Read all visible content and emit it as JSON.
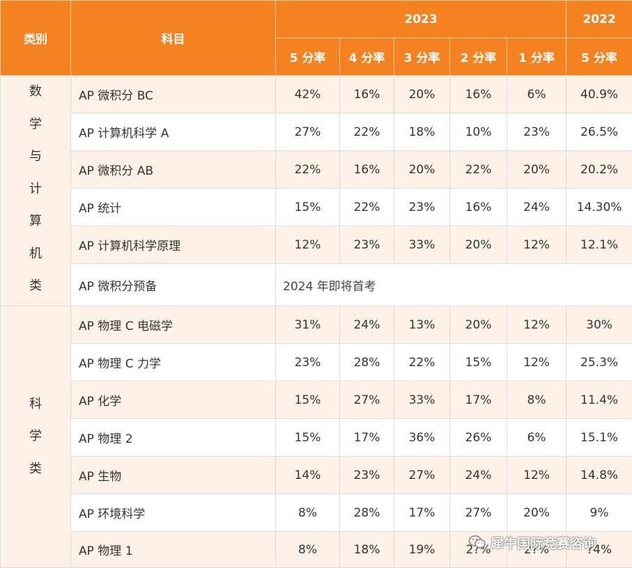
{
  "header": {
    "category": "类别",
    "subject": "科目",
    "year_2023": "2023",
    "year_2022": "2022",
    "rates_2023": [
      "5 分率",
      "4 分率",
      "3 分率",
      "2 分率",
      "1 分率"
    ],
    "rate_2022": "5 分率"
  },
  "groups": [
    {
      "category_chars": [
        "数",
        "学",
        "与",
        "计",
        "算",
        "机",
        "类"
      ],
      "rows": [
        {
          "subject": "AP 微积分 BC",
          "values": [
            "42%",
            "16%",
            "20%",
            "16%",
            "6%",
            "40.9%"
          ]
        },
        {
          "subject": "AP 计算机科学 A",
          "values": [
            "27%",
            "22%",
            "18%",
            "10%",
            "23%",
            "26.5%"
          ]
        },
        {
          "subject": "AP 微积分 AB",
          "values": [
            "22%",
            "16%",
            "20%",
            "22%",
            "20%",
            "20.2%"
          ]
        },
        {
          "subject": "AP 统计",
          "values": [
            "15%",
            "22%",
            "23%",
            "16%",
            "24%",
            "14.30%"
          ]
        },
        {
          "subject": "AP 计算机科学原理",
          "values": [
            "12%",
            "23%",
            "33%",
            "20%",
            "12%",
            "12.1%"
          ]
        }
      ],
      "note_row": {
        "subject": "AP 微积分预备",
        "note": "2024 年即将首考"
      }
    },
    {
      "category_chars": [
        "科",
        "学",
        "类"
      ],
      "rows": [
        {
          "subject": "AP 物理 C 电磁学",
          "values": [
            "31%",
            "24%",
            "13%",
            "20%",
            "12%",
            "30%"
          ]
        },
        {
          "subject": "AP 物理 C 力学",
          "values": [
            "23%",
            "28%",
            "22%",
            "15%",
            "12%",
            "25.3%"
          ]
        },
        {
          "subject": "AP 化学",
          "values": [
            "15%",
            "27%",
            "33%",
            "17%",
            "8%",
            "11.4%"
          ]
        },
        {
          "subject": "AP 物理 2",
          "values": [
            "15%",
            "17%",
            "36%",
            "26%",
            "6%",
            "15.1%"
          ]
        },
        {
          "subject": " AP 生物",
          "values": [
            "14%",
            "23%",
            "27%",
            "24%",
            "12%",
            "14.8%"
          ]
        },
        {
          "subject": "AP 环境科学",
          "values": [
            "8%",
            "28%",
            "17%",
            "27%",
            "20%",
            "9%"
          ]
        },
        {
          "subject": "AP 物理 1",
          "values": [
            "8%",
            "18%",
            "19%",
            "2?%",
            "2?%",
            "?4%"
          ]
        }
      ]
    }
  ],
  "watermark": {
    "text": "犀牛国际竞赛咨询",
    "icon": "wechat-icon"
  }
}
